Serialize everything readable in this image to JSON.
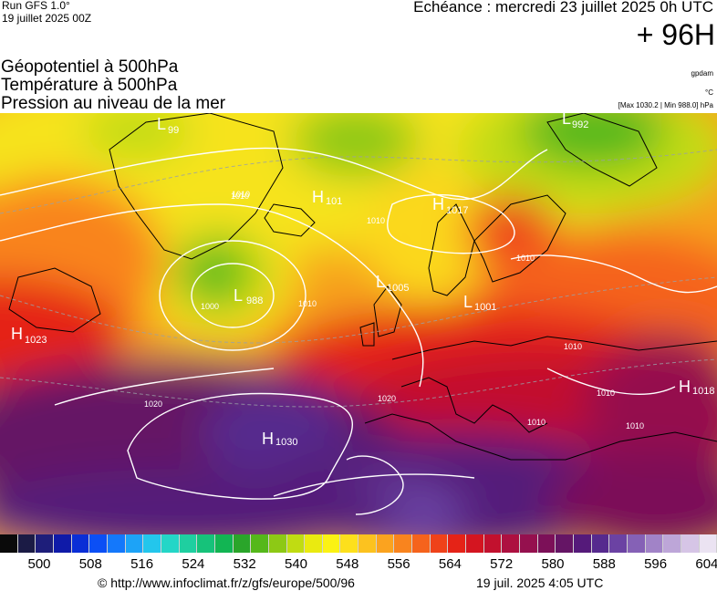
{
  "header": {
    "run_model": "Run GFS 1.0°",
    "run_date": "19 juillet 2025 00Z",
    "forecast_title": "Echéance : mercredi 23 juillet 2025 0h UTC",
    "forecast_hour": "+ 96H"
  },
  "parameters": {
    "geopotential": "Géopotentiel à 500hPa",
    "temperature": "Température à 500hPa",
    "pressure": "Pression au niveau de la mer"
  },
  "units": {
    "geopotential": "gpdam",
    "temperature": "°C",
    "pressure": "[Max 1030.2 | Min 988.0] hPa"
  },
  "map_labels": {
    "highs": [
      {
        "symbol": "H",
        "value": "1017"
      },
      {
        "symbol": "H",
        "value": "1023"
      },
      {
        "symbol": "H",
        "value": "1030"
      },
      {
        "symbol": "H",
        "value": "1018"
      },
      {
        "symbol": "H",
        "value": "101"
      }
    ],
    "lows": [
      {
        "symbol": "L",
        "value": "988"
      },
      {
        "symbol": "L",
        "value": "1005"
      },
      {
        "symbol": "L",
        "value": "1001"
      },
      {
        "symbol": "L",
        "value": "992"
      },
      {
        "symbol": "L",
        "value": "99"
      }
    ],
    "isobars": [
      "1010",
      "1010",
      "1010",
      "1010",
      "1000",
      "1020",
      "1020",
      "1010",
      "1010",
      "1010",
      "1010",
      "1010"
    ]
  },
  "color_scale": {
    "ticks": [
      "500",
      "508",
      "516",
      "524",
      "532",
      "540",
      "548",
      "556",
      "564",
      "572",
      "580",
      "588",
      "596",
      "604"
    ],
    "colors": [
      "#0a0a0a",
      "#1b1b45",
      "#1e1e7a",
      "#0f1aa8",
      "#0a2ed6",
      "#0b4ff5",
      "#1478fb",
      "#1da3f7",
      "#23c6ec",
      "#24d6c7",
      "#1fcfa0",
      "#16c27a",
      "#12b553",
      "#2aa52a",
      "#55b81b",
      "#8dc915",
      "#c0dc12",
      "#eaea10",
      "#fbf214",
      "#fde01c",
      "#fcc21f",
      "#fba31f",
      "#f9841e",
      "#f5631c",
      "#ef421a",
      "#e52317",
      "#d41520",
      "#c2112e",
      "#ad1040",
      "#95104e",
      "#7c1058",
      "#651565",
      "#551a7a",
      "#562a8e",
      "#6b42a3",
      "#8561b6",
      "#a183c7",
      "#bda6d8",
      "#d6c5e6",
      "#ebe3f2"
    ],
    "accent_high": "#5b1f8a",
    "accent_low": "#2aa52a"
  },
  "footer": {
    "credit_url": "© http://www.infoclimat.fr/z/gfs/europe/500/96",
    "generated": "19 juil. 2025  4:05 UTC"
  }
}
